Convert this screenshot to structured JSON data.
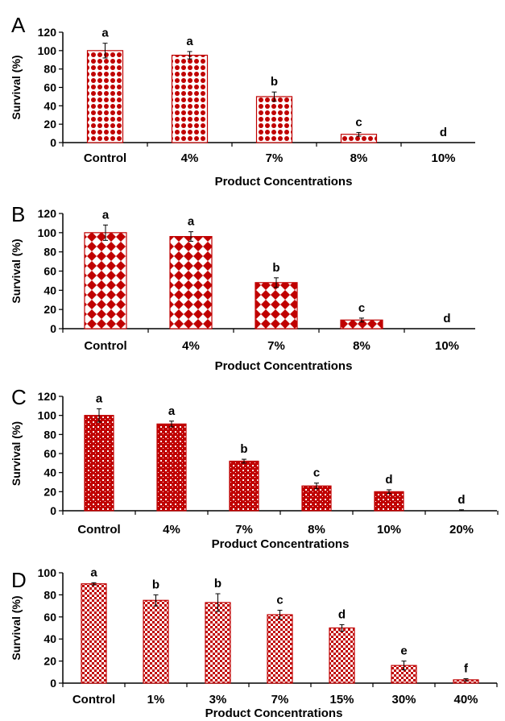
{
  "colors": {
    "bar_fill": "#c00000",
    "bar_edge": "#c00000",
    "background": "#ffffff"
  },
  "chart_data": [
    {
      "type": "bar",
      "panel": "A",
      "pattern": "dots",
      "categories": [
        "Control",
        "4%",
        "7%",
        "8%",
        "10%"
      ],
      "values": [
        100,
        95,
        50,
        9,
        0
      ],
      "errors": [
        8,
        4,
        5,
        2,
        0
      ],
      "significance": [
        "a",
        "a",
        "b",
        "c",
        "d"
      ],
      "xlabel": "Product Concentrations",
      "ylabel": "Survival (%)",
      "ylim": [
        0,
        120
      ],
      "yticks": [
        0,
        20,
        40,
        60,
        80,
        100,
        120
      ]
    },
    {
      "type": "bar",
      "panel": "B",
      "pattern": "diamonds",
      "categories": [
        "Control",
        "4%",
        "7%",
        "8%",
        "10%"
      ],
      "values": [
        100,
        96,
        48,
        9,
        0
      ],
      "errors": [
        8,
        5,
        5,
        2,
        0
      ],
      "significance": [
        "a",
        "a",
        "b",
        "c",
        "d"
      ],
      "xlabel": "Product Concentrations",
      "ylabel": "Survival (%)",
      "ylim": [
        0,
        120
      ],
      "yticks": [
        0,
        20,
        40,
        60,
        80,
        100,
        120
      ]
    },
    {
      "type": "bar",
      "panel": "C",
      "pattern": "weave",
      "categories": [
        "Control",
        "4%",
        "7%",
        "8%",
        "10%",
        "20%"
      ],
      "values": [
        100,
        91,
        52,
        26,
        20,
        0
      ],
      "errors": [
        7,
        3,
        2,
        3,
        2,
        1
      ],
      "significance": [
        "a",
        "a",
        "b",
        "c",
        "d",
        "d"
      ],
      "xlabel": "Product Concentrations",
      "ylabel": "Survival (%)",
      "ylim": [
        0,
        120
      ],
      "yticks": [
        0,
        20,
        40,
        60,
        80,
        100,
        120
      ]
    },
    {
      "type": "bar",
      "panel": "D",
      "pattern": "checker",
      "categories": [
        "Control",
        "1%",
        "3%",
        "7%",
        "15%",
        "30%",
        "40%"
      ],
      "values": [
        90,
        75,
        73,
        62,
        50,
        16,
        3
      ],
      "errors": [
        1,
        5,
        8,
        4,
        3,
        4,
        1
      ],
      "significance": [
        "a",
        "b",
        "b",
        "c",
        "d",
        "e",
        "f"
      ],
      "xlabel": "Product Concentrations",
      "ylabel": "Survival (%)",
      "ylim": [
        0,
        100
      ],
      "yticks": [
        0,
        20,
        40,
        60,
        80,
        100
      ]
    }
  ]
}
